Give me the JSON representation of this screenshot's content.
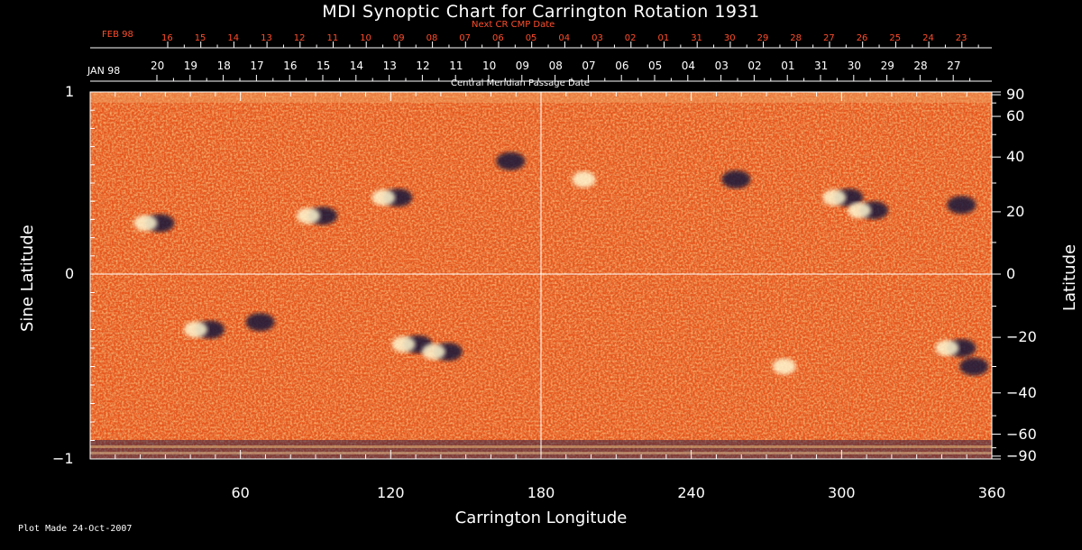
{
  "title": "MDI Synoptic Chart for Carrington Rotation 1931",
  "top_axis": {
    "next_cr_label": "Next CR CMP Date",
    "next_cr_month": "FEB 98",
    "next_cr_dates": [
      "16",
      "15",
      "14",
      "13",
      "12",
      "11",
      "10",
      "09",
      "08",
      "07",
      "06",
      "05",
      "04",
      "03",
      "02",
      "01",
      "31",
      "30",
      "29",
      "28",
      "27",
      "26",
      "25",
      "24",
      "23"
    ],
    "current_month": "JAN 98",
    "current_dates": [
      "20",
      "19",
      "18",
      "17",
      "16",
      "15",
      "14",
      "13",
      "12",
      "11",
      "10",
      "09",
      "08",
      "07",
      "06",
      "05",
      "04",
      "03",
      "02",
      "01",
      "31",
      "30",
      "29",
      "28",
      "27"
    ],
    "cmp_label": "Central Meridian Passage Date"
  },
  "x_axis": {
    "label": "Carrington Longitude",
    "ticks": [
      "60",
      "120",
      "180",
      "240",
      "300",
      "360"
    ],
    "range": [
      0,
      360
    ]
  },
  "y_axis_left": {
    "label": "Sine Latitude",
    "ticks": [
      "1",
      "0",
      "−1"
    ],
    "range": [
      -1,
      1
    ]
  },
  "y_axis_right": {
    "label": "Latitude",
    "ticks": [
      "90",
      "60",
      "40",
      "20",
      "0",
      "−20",
      "−40",
      "−60",
      "−90"
    ]
  },
  "footer": {
    "plot_made": "Plot Made 24-Oct-2007"
  },
  "colors": {
    "background": "#000000",
    "map_base": "#e8551a",
    "positive_polarity": "#fff7d0",
    "negative_polarity": "#14143a",
    "next_cr_text": "#ff4d2a"
  },
  "active_regions": [
    {
      "lon": 25,
      "sinlat": 0.28,
      "polarity": "mixed"
    },
    {
      "lon": 90,
      "sinlat": 0.32,
      "polarity": "mixed"
    },
    {
      "lon": 120,
      "sinlat": 0.42,
      "polarity": "mixed"
    },
    {
      "lon": 165,
      "sinlat": 0.62,
      "polarity": "negative"
    },
    {
      "lon": 200,
      "sinlat": 0.52,
      "polarity": "positive"
    },
    {
      "lon": 255,
      "sinlat": 0.52,
      "polarity": "negative"
    },
    {
      "lon": 300,
      "sinlat": 0.42,
      "polarity": "mixed"
    },
    {
      "lon": 310,
      "sinlat": 0.35,
      "polarity": "mixed"
    },
    {
      "lon": 345,
      "sinlat": 0.38,
      "polarity": "negative"
    },
    {
      "lon": 45,
      "sinlat": -0.3,
      "polarity": "mixed"
    },
    {
      "lon": 65,
      "sinlat": -0.26,
      "polarity": "negative"
    },
    {
      "lon": 128,
      "sinlat": -0.38,
      "polarity": "mixed"
    },
    {
      "lon": 140,
      "sinlat": -0.42,
      "polarity": "mixed"
    },
    {
      "lon": 280,
      "sinlat": -0.5,
      "polarity": "positive"
    },
    {
      "lon": 345,
      "sinlat": -0.4,
      "polarity": "mixed"
    },
    {
      "lon": 350,
      "sinlat": -0.5,
      "polarity": "negative"
    }
  ]
}
